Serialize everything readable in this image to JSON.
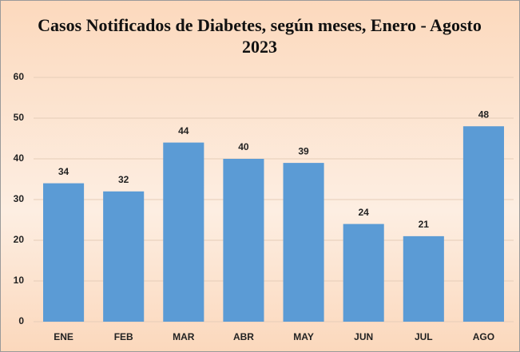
{
  "chart_data": {
    "type": "bar",
    "title": "Casos Notificados de Diabetes, según meses, Enero - Agosto 2023",
    "categories": [
      "ENE",
      "FEB",
      "MAR",
      "ABR",
      "MAY",
      "JUN",
      "JUL",
      "AGO"
    ],
    "values": [
      34,
      32,
      44,
      40,
      39,
      24,
      21,
      48
    ],
    "color": "#5b9bd5",
    "ylim": [
      0,
      60
    ],
    "yticks": [
      0,
      10,
      20,
      30,
      40,
      50,
      60
    ],
    "grid": true
  }
}
